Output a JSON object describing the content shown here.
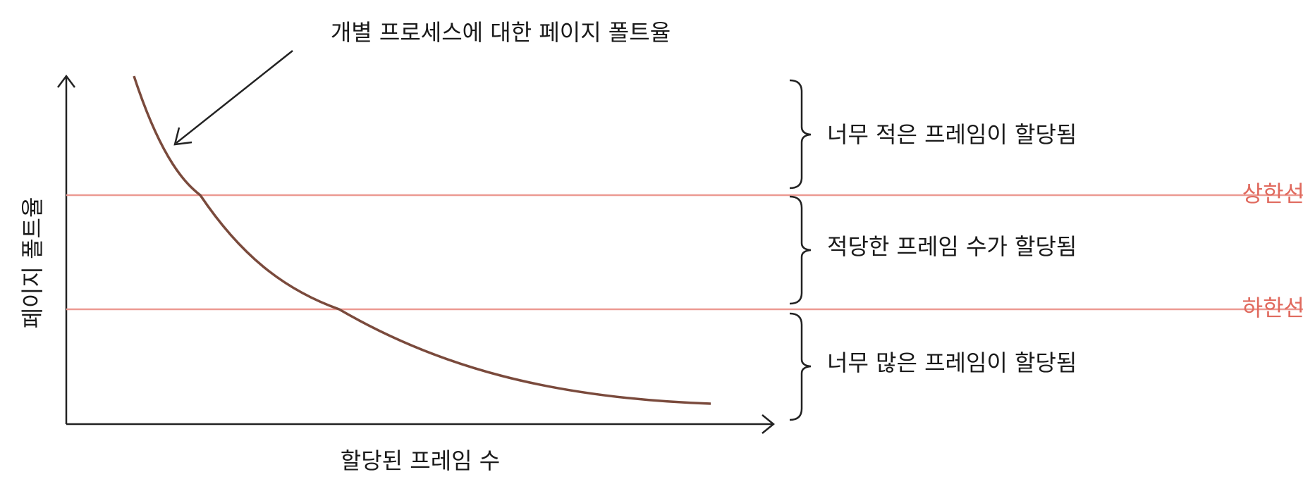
{
  "annotation": "개별 프로세스에 대한 페이지 폴트율",
  "axes": {
    "x_label": "할당된 프레임 수",
    "y_label": "페이지 폴트율"
  },
  "thresholds": {
    "upper": "상한선",
    "lower": "하한선"
  },
  "regions": [
    "너무 적은 프레임이 할당됨",
    "적당한 프레임 수가 할당됨",
    "너무 많은 프레임이 할당됨"
  ]
}
